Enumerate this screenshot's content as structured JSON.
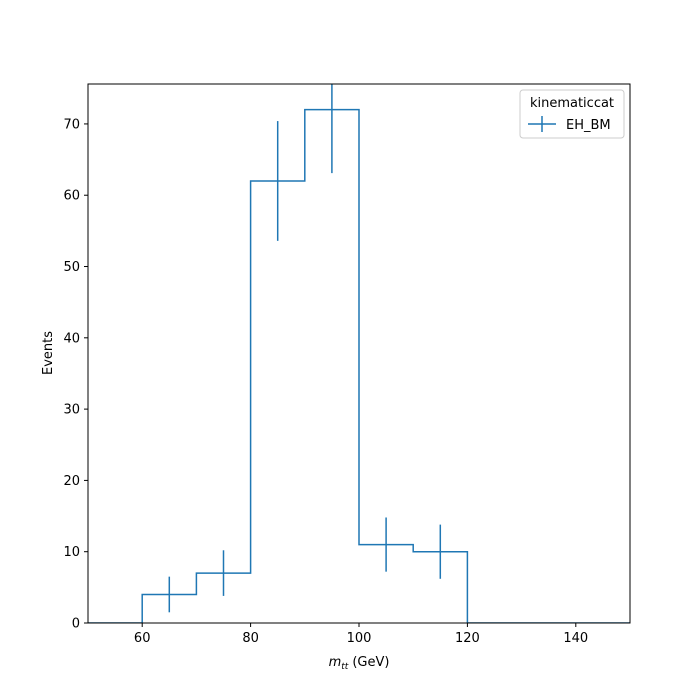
{
  "chart_data": {
    "type": "histogram",
    "title": "",
    "xlabel": {
      "symbol": "m",
      "subscript": "tt",
      "unit": "(GeV)"
    },
    "ylabel": "Events",
    "xlim": [
      50,
      150
    ],
    "ylim": [
      0,
      75.6
    ],
    "xticks": [
      60,
      80,
      100,
      120,
      140
    ],
    "yticks": [
      0,
      10,
      20,
      30,
      40,
      50,
      60,
      70
    ],
    "bin_edges": [
      50,
      60,
      70,
      80,
      90,
      100,
      110,
      120,
      130,
      140,
      150
    ],
    "series": [
      {
        "name": "EH_BM",
        "color": "#1f77b4",
        "values": [
          0,
          4,
          7,
          62,
          72,
          11,
          10,
          0,
          0,
          0
        ],
        "errors": [
          0,
          2.5,
          3.2,
          8.4,
          8.9,
          3.8,
          3.8,
          0,
          0,
          0
        ]
      }
    ],
    "legend": {
      "title": "kinematiccat",
      "position": "top-right"
    },
    "grid": false
  }
}
